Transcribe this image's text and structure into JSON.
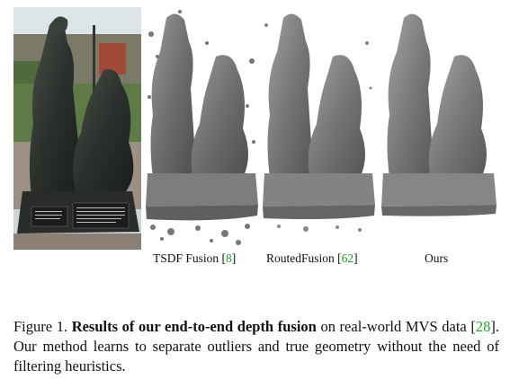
{
  "figure": {
    "panels": [
      {
        "id": "photo",
        "label": ""
      },
      {
        "id": "tsdf",
        "label": "TSDF Fusion [",
        "ref": "8",
        "close": "]"
      },
      {
        "id": "routed",
        "label": "RoutedFusion [",
        "ref": "62",
        "close": "]"
      },
      {
        "id": "ours",
        "label": "Ours"
      }
    ],
    "plaque_text_left": "The family is the foundation of society",
    "plaque_text_right": "There is no doubt that it is thanks to the family..."
  },
  "caption": {
    "prefix": "Figure 1. ",
    "bold": "Results of our end-to-end depth fusion",
    "mid": " on real-world MVS data [",
    "ref": "28",
    "suffix": "]. Our method learns to separate outliers and true geometry without the need of filtering heuristics."
  }
}
